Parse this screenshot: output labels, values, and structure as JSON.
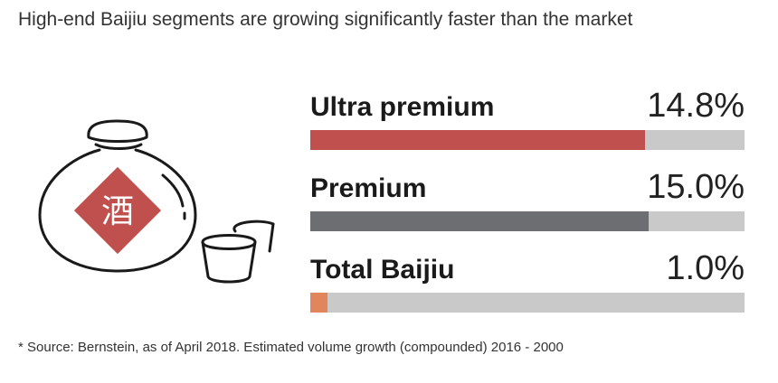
{
  "title": "High-end Baijiu segments are growing significantly faster than the market",
  "icon": "baijiu-bottle-and-cups",
  "emblem_char": "酒",
  "chart_data": {
    "type": "bar",
    "categories": [
      "Ultra premium",
      "Premium",
      "Total Baijiu"
    ],
    "values": [
      14.8,
      15.0,
      1.0
    ],
    "value_labels": [
      "14.8%",
      "15.0%",
      "1.0%"
    ],
    "colors": [
      "#c0504d",
      "#6d6e71",
      "#e0855c"
    ],
    "track_color": "#c9c9c9",
    "fill_fractions": [
      0.77,
      0.78,
      0.04
    ]
  },
  "footnote": "* Source: Bernstein, as of April 2018. Estimated volume growth (compounded) 2016 - 2000"
}
